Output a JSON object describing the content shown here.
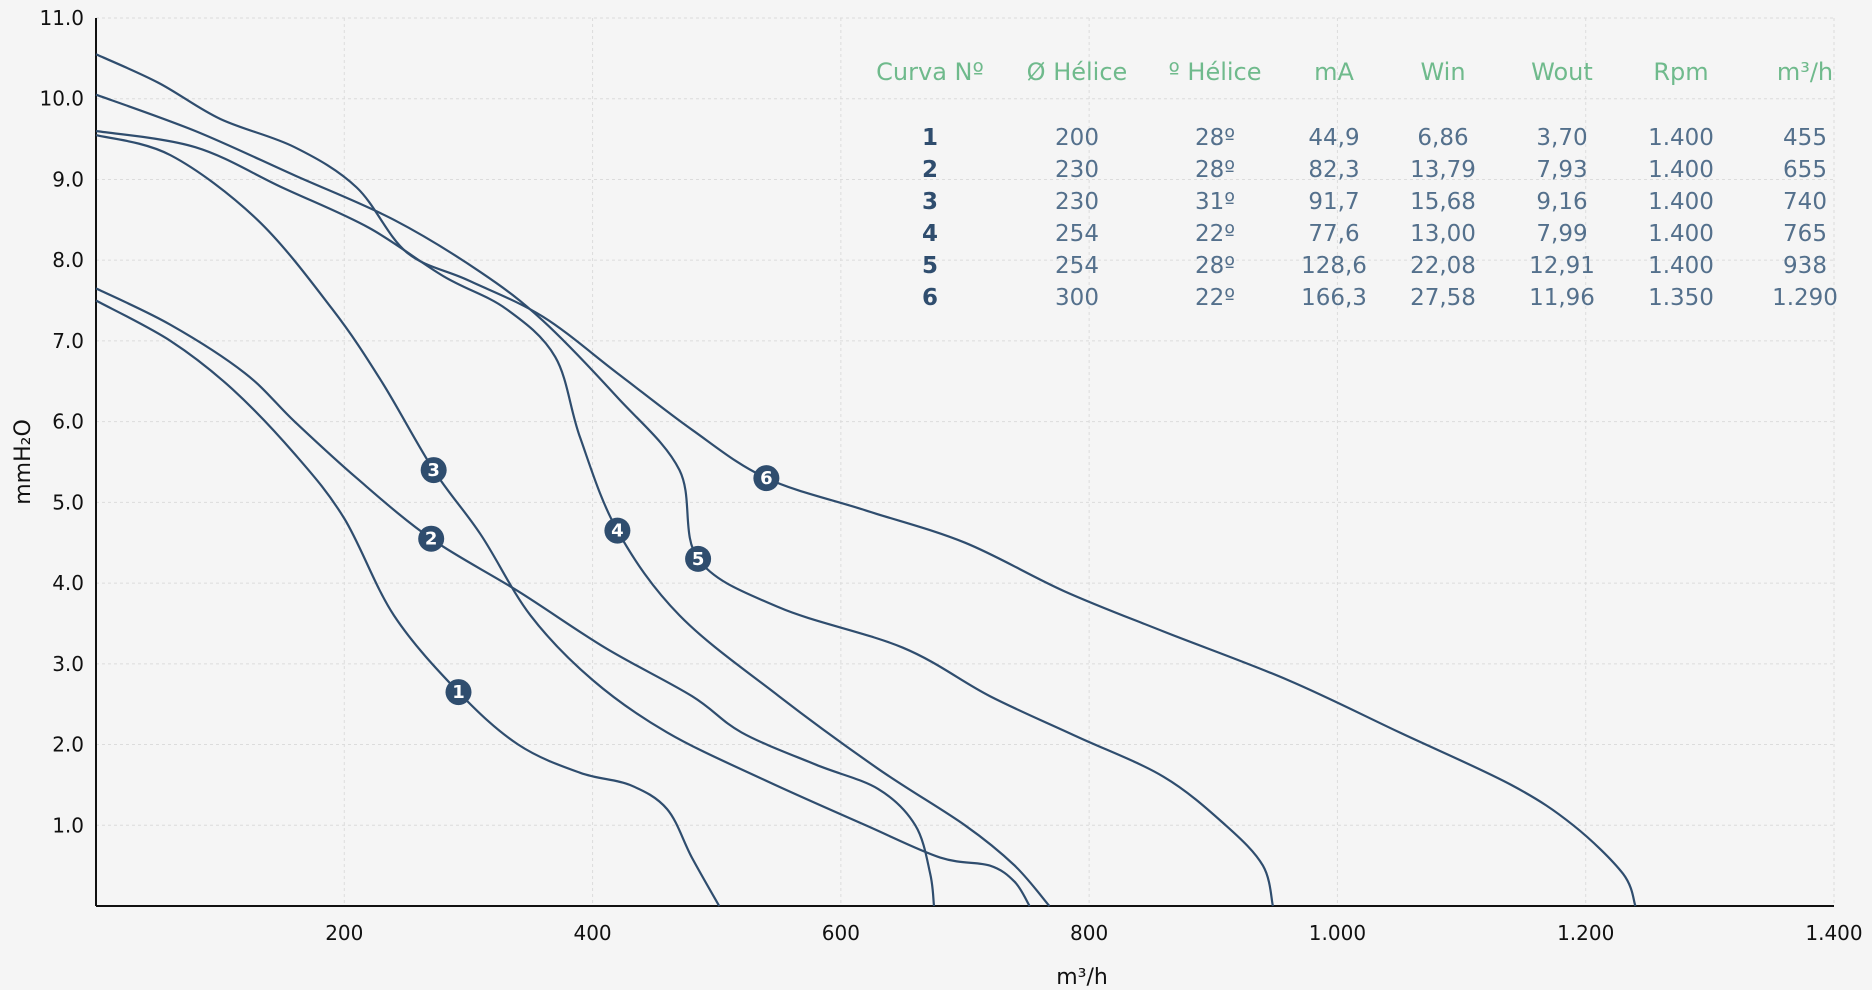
{
  "chart_data": {
    "type": "line",
    "xlabel": "m³/h",
    "ylabel": "mmH₂O",
    "xlim": [
      0,
      1400
    ],
    "ylim": [
      0,
      11
    ],
    "x_ticks": [
      200,
      400,
      600,
      800,
      1000,
      1200,
      1400
    ],
    "x_tick_labels": [
      "200",
      "400",
      "600",
      "800",
      "1.000",
      "1.200",
      "1.400"
    ],
    "y_ticks": [
      1,
      2,
      3,
      4,
      5,
      6,
      7,
      8,
      9,
      10,
      11
    ],
    "y_tick_labels": [
      "1.0",
      "2.0",
      "3.0",
      "4.0",
      "5.0",
      "6.0",
      "7.0",
      "8.0",
      "9.0",
      "10.0",
      "11.0"
    ],
    "grid": true,
    "line_color": "#2f4d6e",
    "series": [
      {
        "name": "1",
        "label_at": [
          292,
          2.65
        ],
        "points": [
          [
            0,
            7.5
          ],
          [
            60,
            7.0
          ],
          [
            110,
            6.4
          ],
          [
            160,
            5.6
          ],
          [
            200,
            4.8
          ],
          [
            240,
            3.6
          ],
          [
            292,
            2.65
          ],
          [
            340,
            2.0
          ],
          [
            390,
            1.65
          ],
          [
            430,
            1.5
          ],
          [
            460,
            1.2
          ],
          [
            480,
            0.6
          ],
          [
            502,
            0
          ]
        ]
      },
      {
        "name": "2",
        "label_at": [
          270,
          4.55
        ],
        "points": [
          [
            0,
            7.65
          ],
          [
            60,
            7.2
          ],
          [
            120,
            6.6
          ],
          [
            160,
            6.0
          ],
          [
            210,
            5.3
          ],
          [
            270,
            4.55
          ],
          [
            340,
            3.9
          ],
          [
            410,
            3.2
          ],
          [
            480,
            2.6
          ],
          [
            520,
            2.15
          ],
          [
            580,
            1.75
          ],
          [
            630,
            1.45
          ],
          [
            660,
            1.0
          ],
          [
            672,
            0.4
          ],
          [
            675,
            0
          ]
        ]
      },
      {
        "name": "3",
        "label_at": [
          272,
          5.4
        ],
        "points": [
          [
            0,
            9.55
          ],
          [
            60,
            9.3
          ],
          [
            130,
            8.5
          ],
          [
            190,
            7.4
          ],
          [
            230,
            6.5
          ],
          [
            272,
            5.4
          ],
          [
            310,
            4.6
          ],
          [
            350,
            3.6
          ],
          [
            400,
            2.8
          ],
          [
            460,
            2.15
          ],
          [
            540,
            1.55
          ],
          [
            620,
            1.0
          ],
          [
            680,
            0.6
          ],
          [
            720,
            0.5
          ],
          [
            740,
            0.3
          ],
          [
            752,
            0
          ]
        ]
      },
      {
        "name": "4",
        "label_at": [
          420,
          4.65
        ],
        "points": [
          [
            0,
            9.6
          ],
          [
            80,
            9.4
          ],
          [
            150,
            8.9
          ],
          [
            220,
            8.4
          ],
          [
            280,
            7.8
          ],
          [
            330,
            7.4
          ],
          [
            370,
            6.8
          ],
          [
            390,
            5.8
          ],
          [
            420,
            4.65
          ],
          [
            470,
            3.6
          ],
          [
            550,
            2.6
          ],
          [
            630,
            1.7
          ],
          [
            700,
            1.0
          ],
          [
            740,
            0.5
          ],
          [
            768,
            0
          ]
        ]
      },
      {
        "name": "5",
        "label_at": [
          485,
          4.3
        ],
        "points": [
          [
            0,
            10.05
          ],
          [
            80,
            9.6
          ],
          [
            160,
            9.05
          ],
          [
            240,
            8.5
          ],
          [
            310,
            7.85
          ],
          [
            360,
            7.25
          ],
          [
            420,
            6.3
          ],
          [
            470,
            5.4
          ],
          [
            485,
            4.3
          ],
          [
            550,
            3.7
          ],
          [
            650,
            3.2
          ],
          [
            720,
            2.6
          ],
          [
            790,
            2.1
          ],
          [
            860,
            1.6
          ],
          [
            910,
            1.0
          ],
          [
            940,
            0.5
          ],
          [
            948,
            0
          ]
        ]
      },
      {
        "name": "6",
        "label_at": [
          540,
          5.3
        ],
        "points": [
          [
            0,
            10.55
          ],
          [
            50,
            10.2
          ],
          [
            100,
            9.75
          ],
          [
            160,
            9.4
          ],
          [
            210,
            8.9
          ],
          [
            250,
            8.1
          ],
          [
            300,
            7.75
          ],
          [
            360,
            7.3
          ],
          [
            420,
            6.6
          ],
          [
            480,
            5.9
          ],
          [
            540,
            5.3
          ],
          [
            620,
            4.9
          ],
          [
            700,
            4.5
          ],
          [
            780,
            3.9
          ],
          [
            860,
            3.4
          ],
          [
            960,
            2.8
          ],
          [
            1050,
            2.15
          ],
          [
            1140,
            1.5
          ],
          [
            1190,
            1.0
          ],
          [
            1230,
            0.4
          ],
          [
            1240,
            0
          ]
        ]
      }
    ],
    "table": {
      "headers": [
        "Curva Nº",
        "Ø Hélice",
        "º Hélice",
        "mA",
        "Win",
        "Wout",
        "Rpm",
        "m³/h"
      ],
      "rows": [
        [
          "1",
          "200",
          "28º",
          "44,9",
          "6,86",
          "3,70",
          "1.400",
          "455"
        ],
        [
          "2",
          "230",
          "28º",
          "82,3",
          "13,79",
          "7,93",
          "1.400",
          "655"
        ],
        [
          "3",
          "230",
          "31º",
          "91,7",
          "15,68",
          "9,16",
          "1.400",
          "740"
        ],
        [
          "4",
          "254",
          "22º",
          "77,6",
          "13,00",
          "7,99",
          "1.400",
          "765"
        ],
        [
          "5",
          "254",
          "28º",
          "128,6",
          "22,08",
          "12,91",
          "1.400",
          "938"
        ],
        [
          "6",
          "300",
          "22º",
          "166,3",
          "27,58",
          "11,96",
          "1.350",
          "1.290"
        ]
      ]
    }
  }
}
